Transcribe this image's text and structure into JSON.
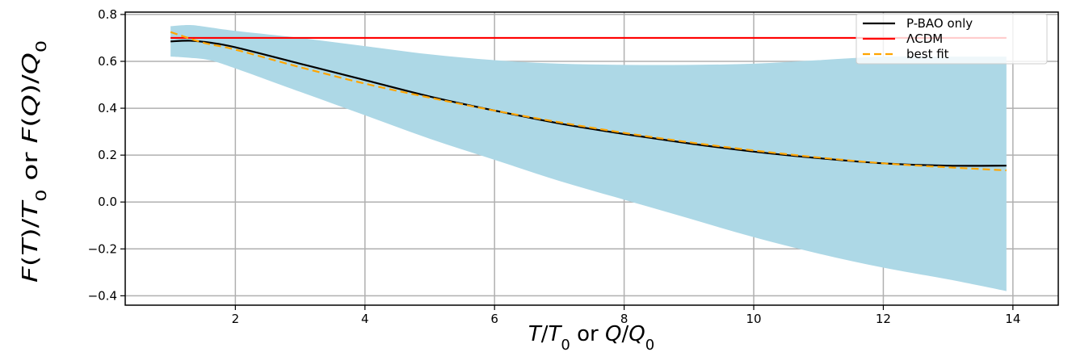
{
  "chart_data": {
    "type": "line",
    "title": "",
    "xlabel": "T/T₀ or Q/Q₀",
    "ylabel": "F(T)/T₀ or F(Q)/Q₀",
    "xlim": [
      0.3,
      14.7
    ],
    "ylim": [
      -0.44,
      0.81
    ],
    "xticks": [
      2,
      4,
      6,
      8,
      10,
      12,
      14
    ],
    "yticks": [
      -0.4,
      -0.2,
      0.0,
      0.2,
      0.4,
      0.6,
      0.8
    ],
    "xtick_labels": [
      "2",
      "4",
      "6",
      "8",
      "10",
      "12",
      "14"
    ],
    "ytick_labels": [
      "−0.4",
      "−0.2",
      "0.0",
      "0.2",
      "0.4",
      "0.6",
      "0.8"
    ],
    "grid": true,
    "legend_position": "top-right",
    "band": {
      "color": "#add8e6",
      "x": [
        1.0,
        1.3,
        1.6,
        2,
        3,
        4,
        5,
        6,
        7,
        8,
        9,
        10,
        11,
        12,
        13,
        13.9
      ],
      "upper": [
        0.75,
        0.755,
        0.745,
        0.73,
        0.7,
        0.665,
        0.63,
        0.605,
        0.59,
        0.585,
        0.585,
        0.59,
        0.605,
        0.62,
        0.62,
        0.62
      ],
      "lower": [
        0.62,
        0.615,
        0.605,
        0.57,
        0.47,
        0.37,
        0.27,
        0.18,
        0.09,
        0.01,
        -0.07,
        -0.15,
        -0.22,
        -0.28,
        -0.33,
        -0.38
      ]
    },
    "series": [
      {
        "name": "P-BAO only",
        "color": "#000000",
        "dash": "solid",
        "x": [
          1.0,
          1.3,
          1.6,
          2,
          3,
          4,
          5,
          6,
          7,
          8,
          9,
          10,
          11,
          12,
          13,
          13.9
        ],
        "y": [
          0.685,
          0.688,
          0.68,
          0.66,
          0.59,
          0.52,
          0.45,
          0.39,
          0.335,
          0.29,
          0.25,
          0.215,
          0.187,
          0.165,
          0.155,
          0.155
        ]
      },
      {
        "name": "ΛCDM",
        "color": "#ff0000",
        "dash": "solid",
        "x": [
          1.0,
          13.9
        ],
        "y": [
          0.7,
          0.7
        ]
      },
      {
        "name": "best fit",
        "color": "#ffa500",
        "dash": "dashed",
        "x": [
          1.0,
          1.5,
          2,
          3,
          4,
          5,
          6,
          7,
          8,
          9,
          10,
          11,
          12,
          13,
          13.9
        ],
        "y": [
          0.725,
          0.68,
          0.65,
          0.575,
          0.505,
          0.445,
          0.39,
          0.34,
          0.295,
          0.255,
          0.22,
          0.19,
          0.165,
          0.148,
          0.135
        ]
      }
    ]
  }
}
